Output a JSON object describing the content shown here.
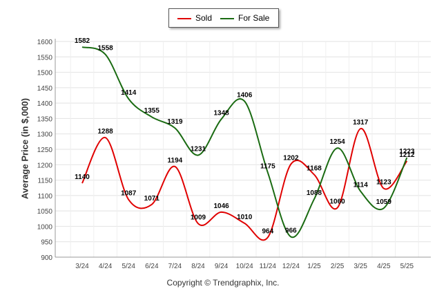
{
  "chart_data": {
    "type": "line",
    "ylabel": "Average Price (in $,000)",
    "ylim": [
      900,
      1600
    ],
    "yticks": [
      900,
      950,
      1000,
      1050,
      1100,
      1150,
      1200,
      1250,
      1300,
      1350,
      1400,
      1450,
      1500,
      1550,
      1600
    ],
    "categories": [
      "3/24",
      "4/24",
      "5/24",
      "6/24",
      "7/24",
      "8/24",
      "9/24",
      "10/24",
      "11/24",
      "12/24",
      "1/25",
      "2/25",
      "3/25",
      "4/25",
      "5/25"
    ],
    "series": [
      {
        "name": "Sold",
        "color": "#e00000",
        "values": [
          1140,
          1288,
          1087,
          1071,
          1194,
          1009,
          1046,
          1010,
          964,
          1202,
          1168,
          1060,
          1317,
          1123,
          1212
        ]
      },
      {
        "name": "For Sale",
        "color": "#1a6b12",
        "values": [
          1582,
          1558,
          1414,
          1355,
          1319,
          1231,
          1348,
          1406,
          1175,
          966,
          1088,
          1254,
          1114,
          1059,
          1223
        ]
      }
    ],
    "legend_position": "top-center",
    "grid": true
  },
  "footer": "Copyright © Trendgraphix, Inc."
}
